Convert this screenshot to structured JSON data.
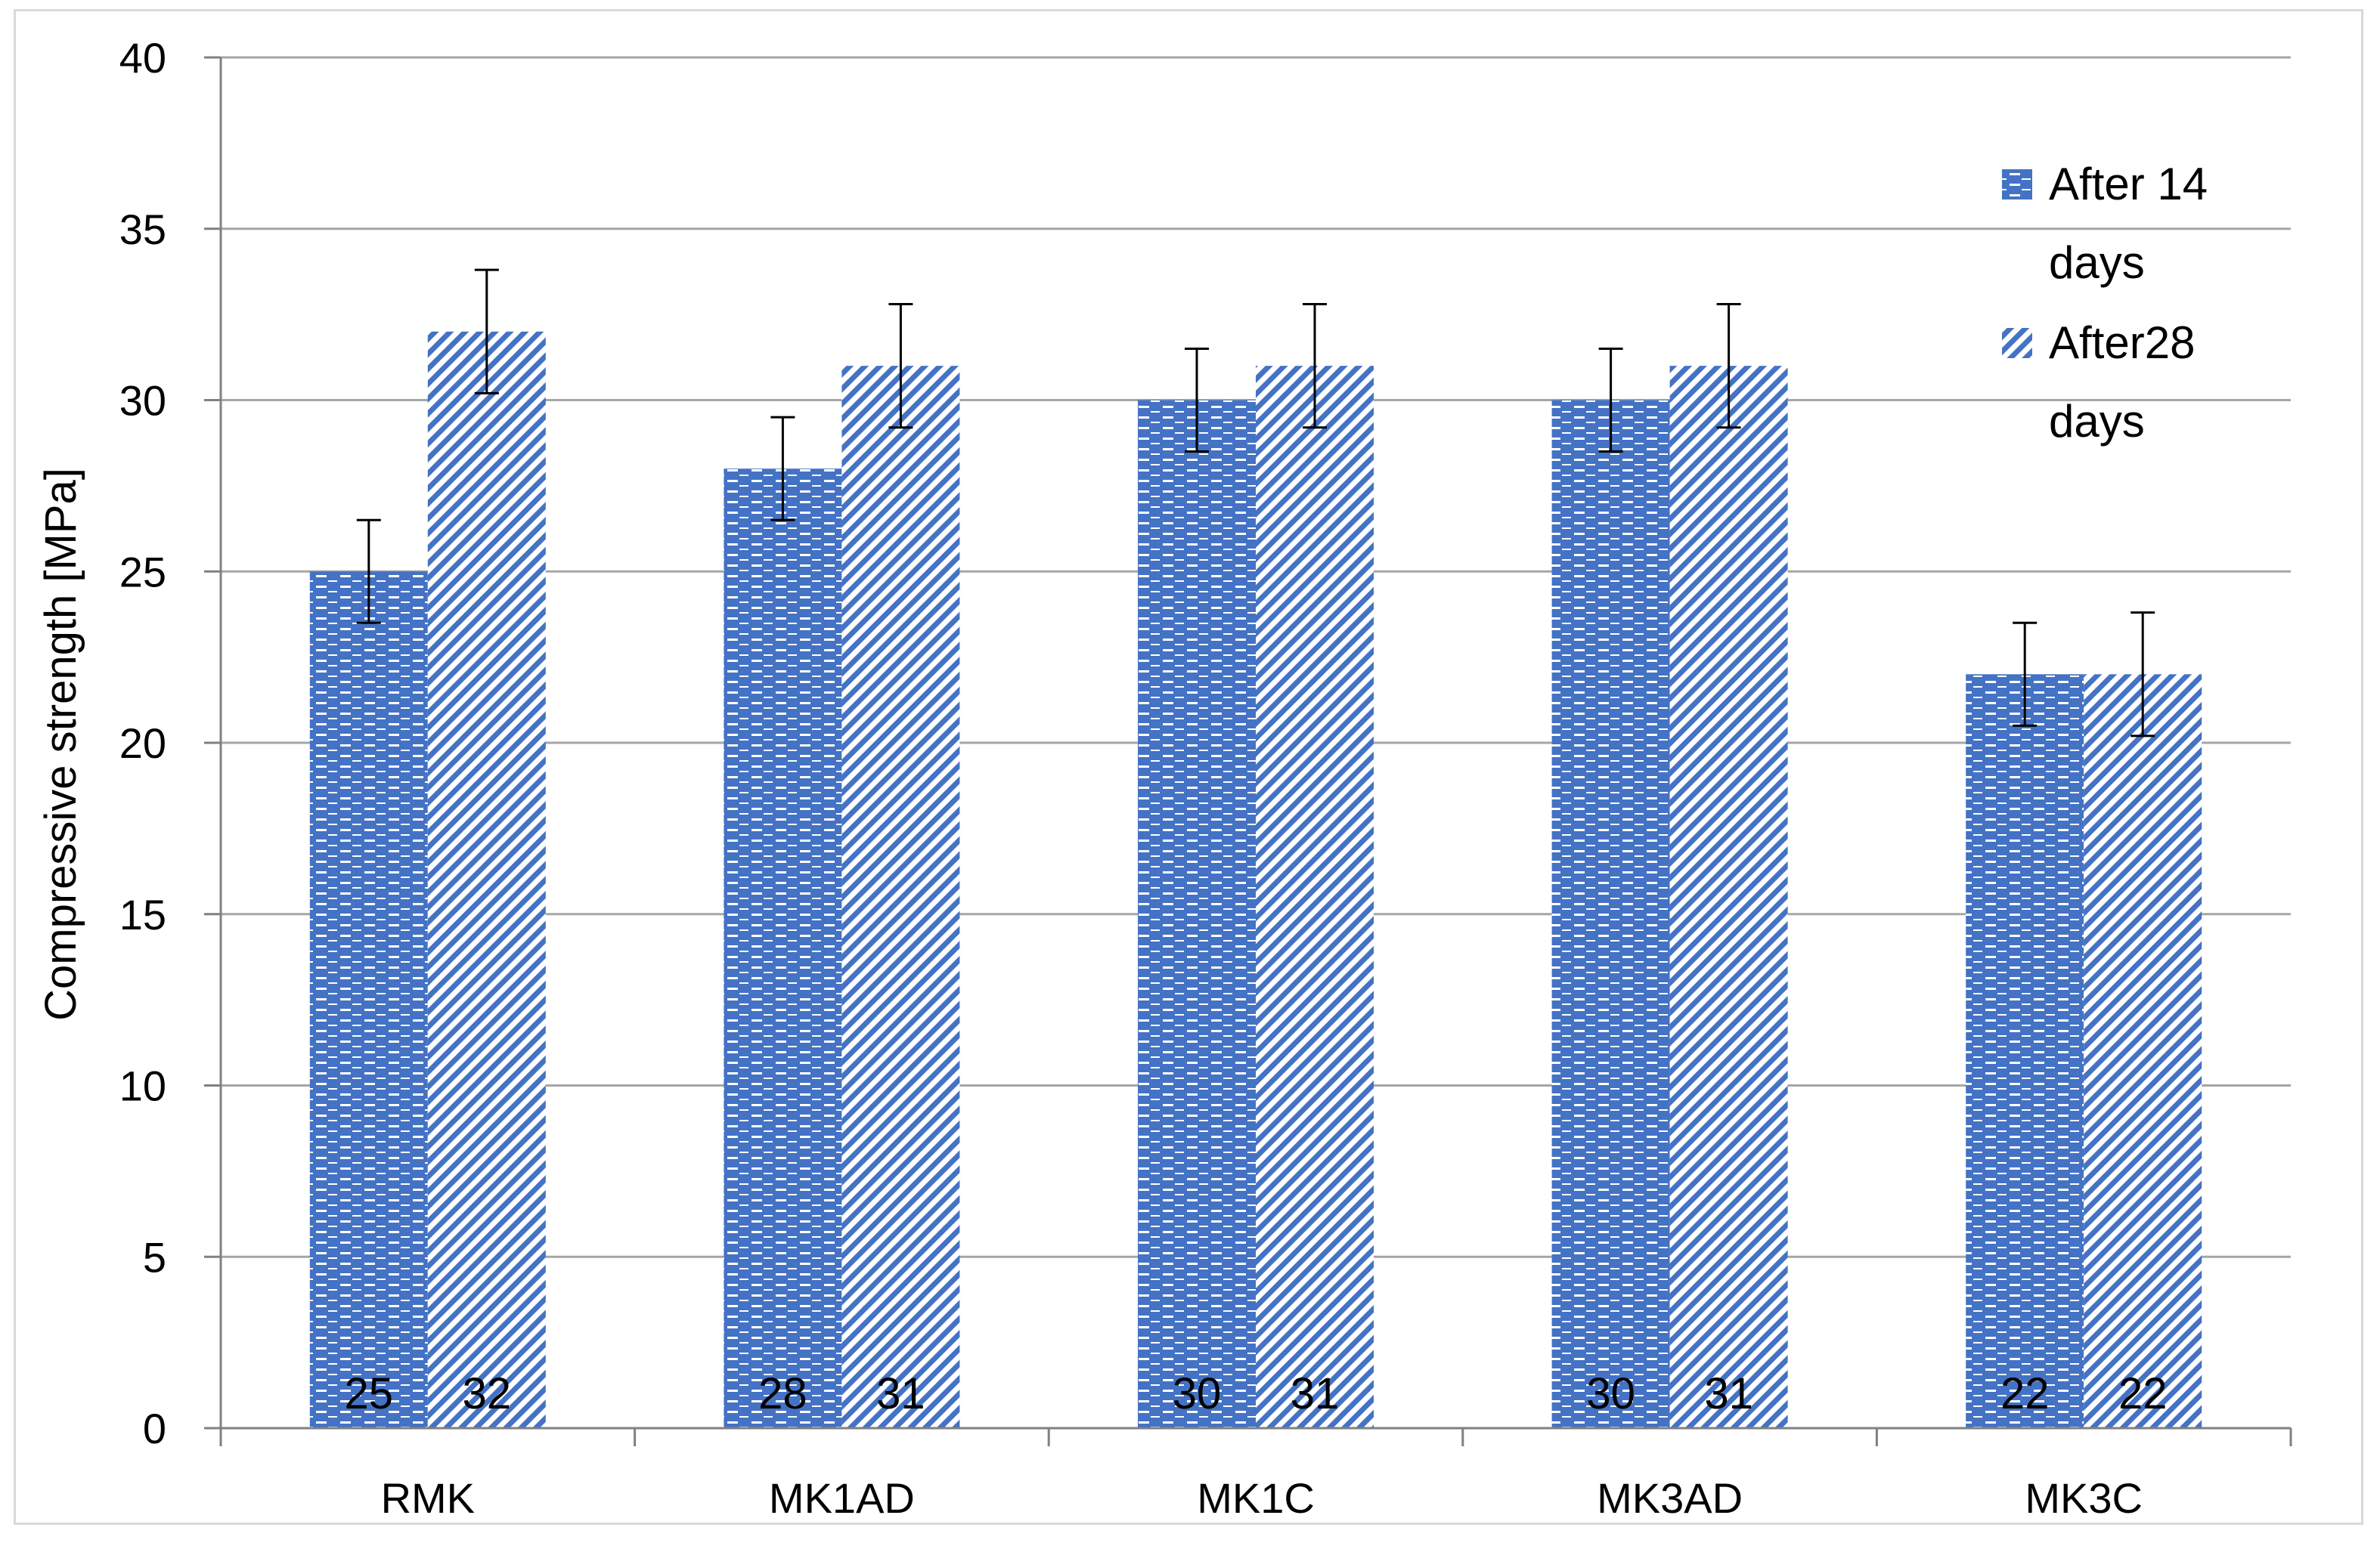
{
  "chart_data": {
    "type": "bar",
    "ylabel": "Compressive strength [MPa]",
    "xlabel": "",
    "ylim": [
      0,
      40
    ],
    "y_ticks": [
      "0",
      "5",
      "10",
      "15",
      "20",
      "25",
      "30",
      "35",
      "40"
    ],
    "categories": [
      "RMK",
      "MK1AD",
      "MK1C",
      "MK3AD",
      "MK3C"
    ],
    "series": [
      {
        "name": "After 14 days",
        "values": [
          25,
          28,
          30,
          30,
          22
        ],
        "error_low": [
          23.5,
          26.5,
          28.5,
          28.5,
          20.5
        ],
        "error_high": [
          26.5,
          29.5,
          31.5,
          31.5,
          23.5
        ],
        "labels": [
          "25",
          "28",
          "30",
          "30",
          "22"
        ],
        "pattern": "horizontal-dashes",
        "color": "#4472c4"
      },
      {
        "name": "After28 days",
        "values": [
          32,
          31,
          31,
          31,
          22
        ],
        "error_low": [
          30.2,
          29.2,
          29.2,
          29.2,
          20.2
        ],
        "error_high": [
          33.8,
          32.8,
          32.8,
          32.8,
          23.8
        ],
        "labels": [
          "32",
          "31",
          "31",
          "31",
          "22"
        ],
        "pattern": "diagonal-stripes",
        "color": "#4472c4"
      }
    ],
    "legend": {
      "placement": "top-right",
      "entries": [
        {
          "lines": [
            "After 14",
            "days"
          ]
        },
        {
          "lines": [
            "After28",
            "days"
          ]
        }
      ]
    },
    "grid": true,
    "colors": {
      "bar": "#4472c4",
      "grid": "#a6a6a6",
      "axis": "#808080",
      "text": "#000000",
      "error": "#000000"
    }
  }
}
